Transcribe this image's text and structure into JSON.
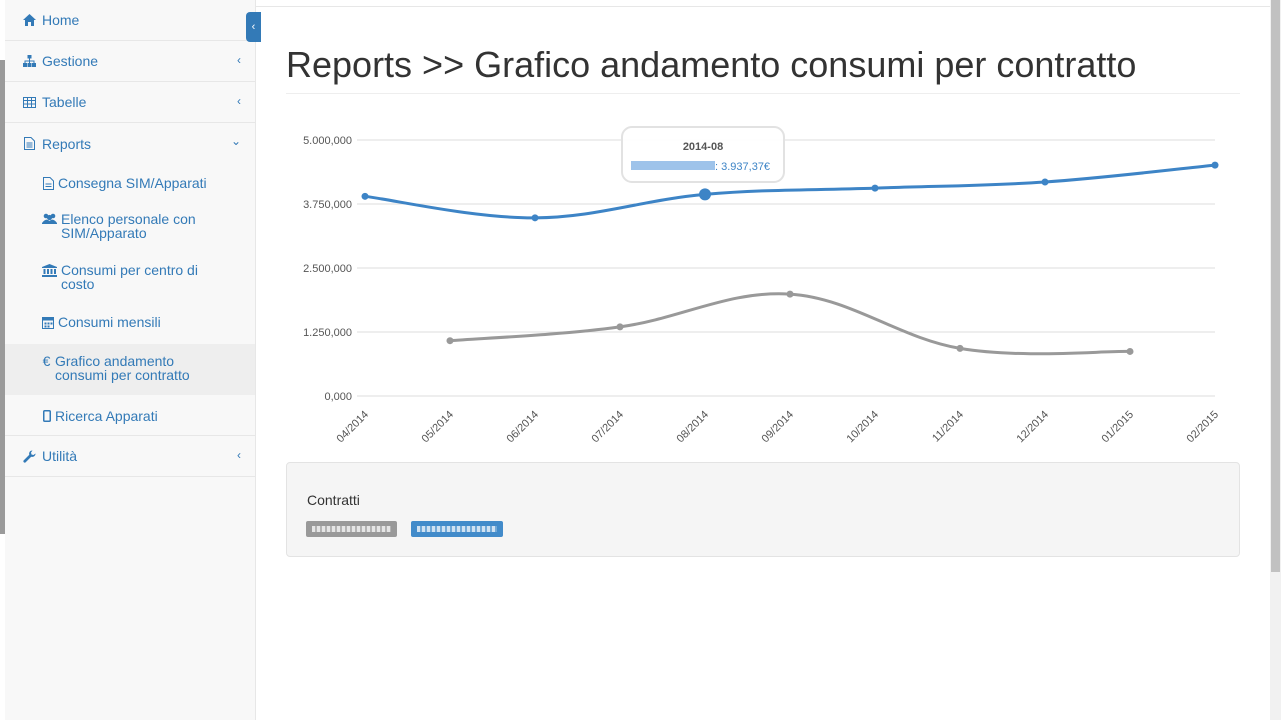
{
  "sidebar": {
    "items": [
      {
        "label": "Home",
        "icon": "home-icon"
      },
      {
        "label": "Gestione",
        "icon": "sitemap-icon"
      },
      {
        "label": "Tabelle",
        "icon": "table-icon"
      },
      {
        "label": "Reports",
        "icon": "file-text-icon"
      },
      {
        "label": "Utilità",
        "icon": "wrench-icon"
      }
    ],
    "sub_items": [
      {
        "label": "Consegna SIM/Apparati",
        "icon": "file-icon"
      },
      {
        "label": "Elenco personale con SIM/Apparato",
        "icon": "users-icon"
      },
      {
        "label": "Consumi per centro di costo",
        "icon": "bank-icon"
      },
      {
        "label": "Consumi mensili",
        "icon": "calendar-icon"
      },
      {
        "label": "Grafico andamento consumi per contratto",
        "icon": "euro-icon"
      },
      {
        "label": "Ricerca Apparati",
        "icon": "mobile-icon"
      }
    ]
  },
  "page": {
    "title": "Reports >> Grafico andamento consumi per contratto"
  },
  "panel": {
    "label": "Contratti"
  },
  "tooltip": {
    "title": "2014-08",
    "value": ": 3.937,37€"
  },
  "colors": {
    "accent": "#337ab7",
    "series_blue": "#3d84c6",
    "series_grey": "#999999"
  },
  "chart_data": {
    "type": "line",
    "x": [
      "04/2014",
      "05/2014",
      "06/2014",
      "07/2014",
      "08/2014",
      "09/2014",
      "10/2014",
      "11/2014",
      "12/2014",
      "01/2015",
      "02/2015"
    ],
    "y_ticks": [
      "0,000",
      "1.250,000",
      "2.500,000",
      "3.750,000",
      "5.000,000"
    ],
    "ylim": [
      0,
      5000
    ],
    "grid": true,
    "series": [
      {
        "color": "#3d84c6",
        "values": [
          3900,
          null,
          3480,
          null,
          3937.37,
          null,
          4060,
          null,
          4180,
          null,
          4510
        ]
      },
      {
        "color": "#999999",
        "values": [
          null,
          1080,
          null,
          1350,
          null,
          1990,
          null,
          930,
          null,
          870,
          null
        ]
      }
    ]
  }
}
